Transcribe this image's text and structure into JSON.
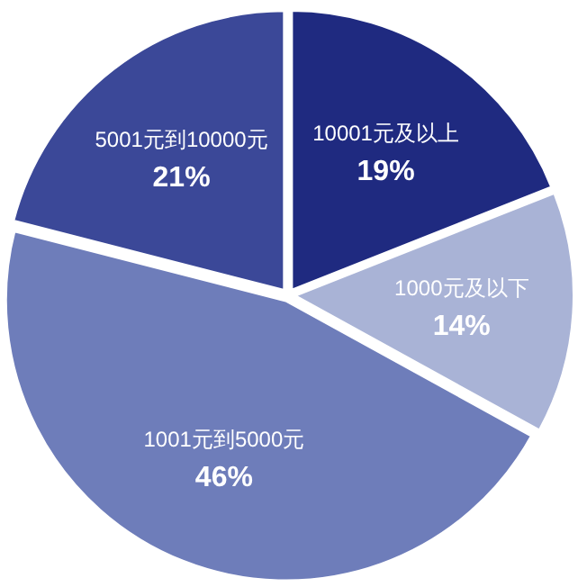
{
  "chart_data": {
    "type": "pie",
    "categories": [
      "10001元及以上",
      "1000元及以下",
      "1001元到5000元",
      "5001元到10000元"
    ],
    "values": [
      19,
      14,
      46,
      21
    ],
    "value_labels": [
      "19%",
      "14%",
      "46%",
      "21%"
    ],
    "colors": [
      "#1f2a80",
      "#a9b3d6",
      "#6e7dba",
      "#3b4898"
    ]
  }
}
